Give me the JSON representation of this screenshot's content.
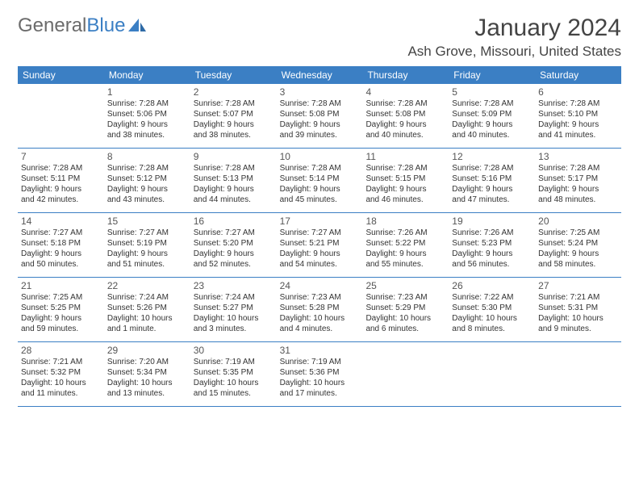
{
  "brand": {
    "part1": "General",
    "part2": "Blue"
  },
  "title": "January 2024",
  "location": "Ash Grove, Missouri, United States",
  "colors": {
    "header_bg": "#3b7fc4",
    "header_text": "#ffffff",
    "text": "#333333",
    "title_text": "#444444",
    "logo_gray": "#6b6b6b",
    "logo_blue": "#3b7fc4",
    "border": "#3b7fc4",
    "background": "#ffffff"
  },
  "day_headers": [
    "Sunday",
    "Monday",
    "Tuesday",
    "Wednesday",
    "Thursday",
    "Friday",
    "Saturday"
  ],
  "weeks": [
    [
      null,
      {
        "n": "1",
        "sr": "Sunrise: 7:28 AM",
        "ss": "Sunset: 5:06 PM",
        "d1": "Daylight: 9 hours",
        "d2": "and 38 minutes."
      },
      {
        "n": "2",
        "sr": "Sunrise: 7:28 AM",
        "ss": "Sunset: 5:07 PM",
        "d1": "Daylight: 9 hours",
        "d2": "and 38 minutes."
      },
      {
        "n": "3",
        "sr": "Sunrise: 7:28 AM",
        "ss": "Sunset: 5:08 PM",
        "d1": "Daylight: 9 hours",
        "d2": "and 39 minutes."
      },
      {
        "n": "4",
        "sr": "Sunrise: 7:28 AM",
        "ss": "Sunset: 5:08 PM",
        "d1": "Daylight: 9 hours",
        "d2": "and 40 minutes."
      },
      {
        "n": "5",
        "sr": "Sunrise: 7:28 AM",
        "ss": "Sunset: 5:09 PM",
        "d1": "Daylight: 9 hours",
        "d2": "and 40 minutes."
      },
      {
        "n": "6",
        "sr": "Sunrise: 7:28 AM",
        "ss": "Sunset: 5:10 PM",
        "d1": "Daylight: 9 hours",
        "d2": "and 41 minutes."
      }
    ],
    [
      {
        "n": "7",
        "sr": "Sunrise: 7:28 AM",
        "ss": "Sunset: 5:11 PM",
        "d1": "Daylight: 9 hours",
        "d2": "and 42 minutes."
      },
      {
        "n": "8",
        "sr": "Sunrise: 7:28 AM",
        "ss": "Sunset: 5:12 PM",
        "d1": "Daylight: 9 hours",
        "d2": "and 43 minutes."
      },
      {
        "n": "9",
        "sr": "Sunrise: 7:28 AM",
        "ss": "Sunset: 5:13 PM",
        "d1": "Daylight: 9 hours",
        "d2": "and 44 minutes."
      },
      {
        "n": "10",
        "sr": "Sunrise: 7:28 AM",
        "ss": "Sunset: 5:14 PM",
        "d1": "Daylight: 9 hours",
        "d2": "and 45 minutes."
      },
      {
        "n": "11",
        "sr": "Sunrise: 7:28 AM",
        "ss": "Sunset: 5:15 PM",
        "d1": "Daylight: 9 hours",
        "d2": "and 46 minutes."
      },
      {
        "n": "12",
        "sr": "Sunrise: 7:28 AM",
        "ss": "Sunset: 5:16 PM",
        "d1": "Daylight: 9 hours",
        "d2": "and 47 minutes."
      },
      {
        "n": "13",
        "sr": "Sunrise: 7:28 AM",
        "ss": "Sunset: 5:17 PM",
        "d1": "Daylight: 9 hours",
        "d2": "and 48 minutes."
      }
    ],
    [
      {
        "n": "14",
        "sr": "Sunrise: 7:27 AM",
        "ss": "Sunset: 5:18 PM",
        "d1": "Daylight: 9 hours",
        "d2": "and 50 minutes."
      },
      {
        "n": "15",
        "sr": "Sunrise: 7:27 AM",
        "ss": "Sunset: 5:19 PM",
        "d1": "Daylight: 9 hours",
        "d2": "and 51 minutes."
      },
      {
        "n": "16",
        "sr": "Sunrise: 7:27 AM",
        "ss": "Sunset: 5:20 PM",
        "d1": "Daylight: 9 hours",
        "d2": "and 52 minutes."
      },
      {
        "n": "17",
        "sr": "Sunrise: 7:27 AM",
        "ss": "Sunset: 5:21 PM",
        "d1": "Daylight: 9 hours",
        "d2": "and 54 minutes."
      },
      {
        "n": "18",
        "sr": "Sunrise: 7:26 AM",
        "ss": "Sunset: 5:22 PM",
        "d1": "Daylight: 9 hours",
        "d2": "and 55 minutes."
      },
      {
        "n": "19",
        "sr": "Sunrise: 7:26 AM",
        "ss": "Sunset: 5:23 PM",
        "d1": "Daylight: 9 hours",
        "d2": "and 56 minutes."
      },
      {
        "n": "20",
        "sr": "Sunrise: 7:25 AM",
        "ss": "Sunset: 5:24 PM",
        "d1": "Daylight: 9 hours",
        "d2": "and 58 minutes."
      }
    ],
    [
      {
        "n": "21",
        "sr": "Sunrise: 7:25 AM",
        "ss": "Sunset: 5:25 PM",
        "d1": "Daylight: 9 hours",
        "d2": "and 59 minutes."
      },
      {
        "n": "22",
        "sr": "Sunrise: 7:24 AM",
        "ss": "Sunset: 5:26 PM",
        "d1": "Daylight: 10 hours",
        "d2": "and 1 minute."
      },
      {
        "n": "23",
        "sr": "Sunrise: 7:24 AM",
        "ss": "Sunset: 5:27 PM",
        "d1": "Daylight: 10 hours",
        "d2": "and 3 minutes."
      },
      {
        "n": "24",
        "sr": "Sunrise: 7:23 AM",
        "ss": "Sunset: 5:28 PM",
        "d1": "Daylight: 10 hours",
        "d2": "and 4 minutes."
      },
      {
        "n": "25",
        "sr": "Sunrise: 7:23 AM",
        "ss": "Sunset: 5:29 PM",
        "d1": "Daylight: 10 hours",
        "d2": "and 6 minutes."
      },
      {
        "n": "26",
        "sr": "Sunrise: 7:22 AM",
        "ss": "Sunset: 5:30 PM",
        "d1": "Daylight: 10 hours",
        "d2": "and 8 minutes."
      },
      {
        "n": "27",
        "sr": "Sunrise: 7:21 AM",
        "ss": "Sunset: 5:31 PM",
        "d1": "Daylight: 10 hours",
        "d2": "and 9 minutes."
      }
    ],
    [
      {
        "n": "28",
        "sr": "Sunrise: 7:21 AM",
        "ss": "Sunset: 5:32 PM",
        "d1": "Daylight: 10 hours",
        "d2": "and 11 minutes."
      },
      {
        "n": "29",
        "sr": "Sunrise: 7:20 AM",
        "ss": "Sunset: 5:34 PM",
        "d1": "Daylight: 10 hours",
        "d2": "and 13 minutes."
      },
      {
        "n": "30",
        "sr": "Sunrise: 7:19 AM",
        "ss": "Sunset: 5:35 PM",
        "d1": "Daylight: 10 hours",
        "d2": "and 15 minutes."
      },
      {
        "n": "31",
        "sr": "Sunrise: 7:19 AM",
        "ss": "Sunset: 5:36 PM",
        "d1": "Daylight: 10 hours",
        "d2": "and 17 minutes."
      },
      null,
      null,
      null
    ]
  ]
}
